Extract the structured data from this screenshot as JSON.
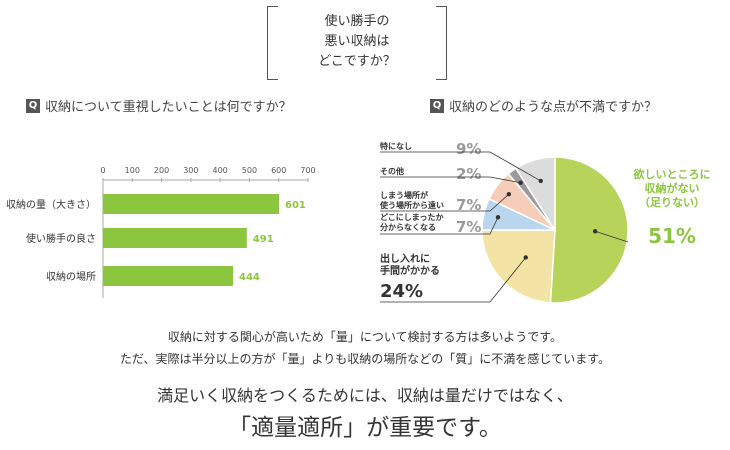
{
  "title": {
    "lines": [
      "使い勝手の",
      "悪い収納は",
      "どこですか？"
    ]
  },
  "question_left": {
    "marker": "Q",
    "text": "収納について重視したいことは何ですか？"
  },
  "question_right": {
    "marker": "Q",
    "text": "収納のどのような点が不満ですか？"
  },
  "colors": {
    "bar": "#8cc63f",
    "pie_main": "#b8d35a",
    "pie_yellow": "#f3e3a5",
    "pie_blue": "#b9d6ec",
    "pie_pink": "#f5cdb8",
    "pie_gray": "#dcdcdc",
    "pie_dark": "#9a9a9a",
    "highlight": "#8cc63f"
  },
  "chart_data": [
    {
      "type": "bar",
      "orientation": "horizontal",
      "categories": [
        "収納の量（大きさ）",
        "使い勝手の良さ",
        "収納の場所"
      ],
      "values": [
        601,
        491,
        444
      ],
      "xlim": [
        0,
        700
      ],
      "xticks": [
        0,
        100,
        200,
        300,
        400,
        500,
        600,
        700
      ],
      "value_labels": [
        "601",
        "491",
        "444"
      ]
    },
    {
      "type": "pie",
      "slices": [
        {
          "label_lines": [
            "欲しいところに",
            "収納がない",
            "（足りない）"
          ],
          "value": 51,
          "value_label": "51%",
          "color": "#b8d35a"
        },
        {
          "label_lines": [
            "出し入れに",
            "手間がかかる"
          ],
          "value": 24,
          "value_label": "24%",
          "color": "#f3e3a5"
        },
        {
          "label_lines": [
            "どこにしまったか",
            "分からなくなる"
          ],
          "value": 7,
          "value_label": "7%",
          "color": "#b9d6ec"
        },
        {
          "label_lines": [
            "しまう場所が",
            "使う場所から遠い"
          ],
          "value": 7,
          "value_label": "7%",
          "color": "#f5cdb8"
        },
        {
          "label_lines": [
            "その他"
          ],
          "value": 2,
          "value_label": "2%",
          "color": "#9a9a9a"
        },
        {
          "label_lines": [
            "特になし"
          ],
          "value": 9,
          "value_label": "9%",
          "color": "#dcdcdc"
        }
      ]
    }
  ],
  "summary": [
    "収納に対する関心が高いため「量」について検討する方は多いようです。",
    "ただ、実際は半分以上の方が「量」よりも収納の場所などの「質」に不満を感じています。"
  ],
  "conclusion": [
    "満足いく収納をつくるためには、収納は量だけではなく、",
    "「適量適所」が重要です。"
  ]
}
